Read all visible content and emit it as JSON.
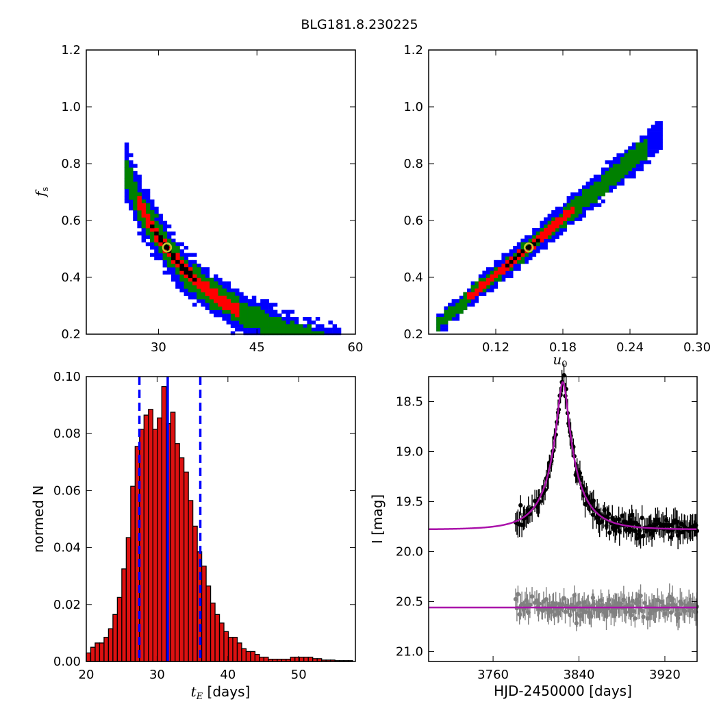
{
  "figure": {
    "title": "BLG181.8.230225"
  },
  "colors": {
    "density_levels": [
      "#0000ff",
      "#008000",
      "#ff0000",
      "#000000"
    ],
    "bar_fill": "#dd1111",
    "bar_edge": "#000000",
    "median_line": "#0000ff",
    "model": "#aa11aa",
    "data_main": "#000000",
    "data_residual": "#808080",
    "best_fit_marker": "#c8c832"
  },
  "chart_data": [
    {
      "id": "tE-vs-fs",
      "type": "heatmap",
      "xlabel": "",
      "ylabel": "f_s",
      "xlim": [
        19,
        60
      ],
      "ylim": [
        0.2,
        1.2
      ],
      "xticks": [
        30,
        45,
        60
      ],
      "xtick_labels": [
        "30",
        "45",
        "60"
      ],
      "yticks": [
        0.2,
        0.4,
        0.6,
        0.8,
        1.0,
        1.2
      ],
      "ytick_labels": [
        "0.2",
        "0.4",
        "0.6",
        "0.8",
        "1.0",
        "1.2"
      ],
      "relation": "fs = 0.5 * (31.3 / tE)^1.92 along the ridge",
      "ridge_range": [
        24.5,
        57.5
      ],
      "best_fit": {
        "x": 31.3,
        "y": 0.505
      },
      "density_levels": [
        "1 sigma (black)",
        "2 sigma (red)",
        "3 sigma (green)",
        "4 sigma (blue)"
      ]
    },
    {
      "id": "u0-vs-fs",
      "type": "heatmap",
      "xlabel": "u_0",
      "ylabel": "",
      "xlim": [
        0.06,
        0.3
      ],
      "ylim": [
        0.2,
        1.2
      ],
      "xticks": [
        0.12,
        0.18,
        0.24,
        0.3
      ],
      "xtick_labels": [
        "0.12",
        "0.18",
        "0.24",
        "0.30"
      ],
      "yticks": [
        0.2,
        0.4,
        0.6,
        0.8,
        1.0,
        1.2
      ],
      "ytick_labels": [
        "0.2",
        "0.4",
        "0.6",
        "0.8",
        "1.0",
        "1.2"
      ],
      "relation": "fs = 0.236 + 3.32 * (u0 - 0.068) along the ridge",
      "ridge_range": [
        0.068,
        0.27
      ],
      "best_fit": {
        "x": 0.1495,
        "y": 0.505
      }
    },
    {
      "id": "tE-histogram",
      "type": "bar",
      "xlabel": "t_E [days]",
      "ylabel": "normed N",
      "xlim": [
        20,
        58
      ],
      "ylim": [
        0,
        0.1
      ],
      "xticks": [
        20,
        30,
        40,
        50
      ],
      "xtick_labels": [
        "20",
        "30",
        "40",
        "50"
      ],
      "yticks": [
        0.0,
        0.02,
        0.04,
        0.06,
        0.08,
        0.1
      ],
      "ytick_labels": [
        "0.00",
        "0.02",
        "0.04",
        "0.06",
        "0.08",
        "0.10"
      ],
      "bin_start": 20.0,
      "bin_width": 0.627,
      "values": [
        0.003,
        0.005,
        0.0065,
        0.0065,
        0.0085,
        0.0115,
        0.0165,
        0.0225,
        0.0325,
        0.0435,
        0.0615,
        0.0755,
        0.0815,
        0.0865,
        0.0885,
        0.0815,
        0.0855,
        0.0965,
        0.0835,
        0.0875,
        0.0765,
        0.0715,
        0.0665,
        0.0565,
        0.0475,
        0.0385,
        0.0335,
        0.0265,
        0.0205,
        0.0165,
        0.0135,
        0.0105,
        0.0085,
        0.0085,
        0.0065,
        0.0045,
        0.0035,
        0.0035,
        0.0025,
        0.0015,
        0.0015,
        0.0008,
        0.0008,
        0.0008,
        0.0008,
        0.0008,
        0.0015,
        0.0015,
        0.0015,
        0.0015,
        0.0015,
        0.001,
        0.001,
        0.0005,
        0.0005,
        0.0005,
        0.0003,
        0.0003,
        0.0003,
        0.0003
      ],
      "median": 31.5,
      "interval": [
        27.5,
        36.1
      ]
    },
    {
      "id": "lightcurve",
      "type": "scatter",
      "xlabel": "HJD-2450000 [days]",
      "ylabel": "I [mag]",
      "xlim": [
        3700,
        3950
      ],
      "ylim": [
        21.1,
        18.25
      ],
      "xticks": [
        3760,
        3840,
        3920
      ],
      "xtick_labels": [
        "3760",
        "3840",
        "3920"
      ],
      "yticks": [
        18.5,
        19.0,
        19.5,
        20.0,
        20.5,
        21.0
      ],
      "ytick_labels": [
        "18.5",
        "19.0",
        "19.5",
        "20.0",
        "20.5",
        "21.0"
      ],
      "model": {
        "t0": 3825,
        "u0": 0.15,
        "tE": 31.3,
        "baseline": 19.78,
        "fs": 0.505
      },
      "residual_baseline": 20.56,
      "data_start": 3781,
      "series": [
        {
          "kind": "photometry",
          "scatter_mag": 0.09,
          "errorbar_mag": 0.11
        },
        {
          "kind": "residuals",
          "scatter_mag": 0.1,
          "errorbar_mag": 0.11
        }
      ]
    }
  ]
}
